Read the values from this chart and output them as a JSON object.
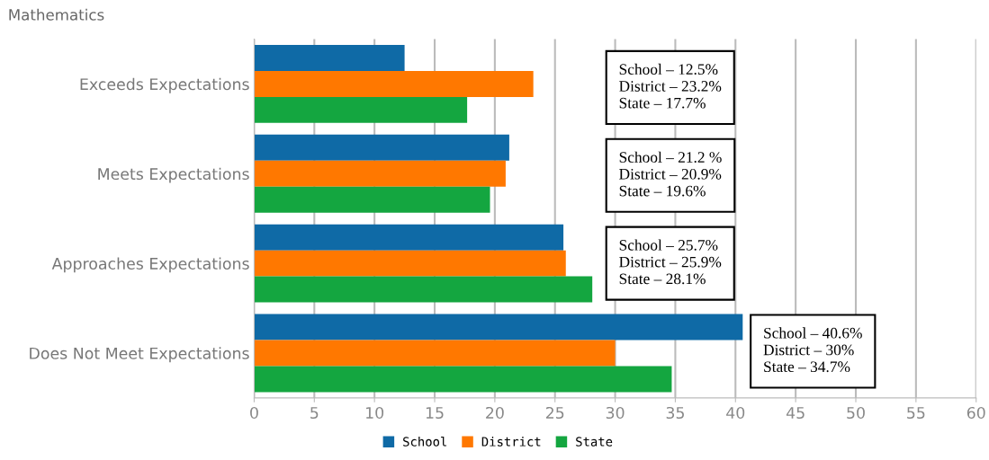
{
  "chart_data": {
    "type": "bar",
    "orientation": "horizontal",
    "title": "Mathematics",
    "categories": [
      "Exceeds Expectations",
      "Meets Expectations",
      "Approaches Expectations",
      "Does Not Meet Expectations"
    ],
    "series": [
      {
        "name": "School",
        "color": "#0f6aa6",
        "values": [
          12.5,
          21.2,
          25.7,
          40.6
        ]
      },
      {
        "name": "District",
        "color": "#ff7800",
        "values": [
          23.2,
          20.9,
          25.9,
          30
        ]
      },
      {
        "name": "State",
        "color": "#14a640",
        "values": [
          17.7,
          19.6,
          28.1,
          34.7
        ]
      }
    ],
    "xlim": [
      0,
      60
    ],
    "xticks": [
      0,
      5,
      10,
      15,
      20,
      25,
      30,
      35,
      40,
      45,
      50,
      55,
      60
    ],
    "grid": "x",
    "legend": "bottom",
    "annotations": [
      "School – 12.5%\nDistrict – 23.2%\nState – 17.7%",
      "School – 21.2 %\nDistrict – 20.9%\nState – 19.6%",
      "School – 25.7%\nDistrict – 25.9%\nState – 28.1%",
      "School – 40.6%\nDistrict – 30%\nState – 34.7%"
    ]
  }
}
